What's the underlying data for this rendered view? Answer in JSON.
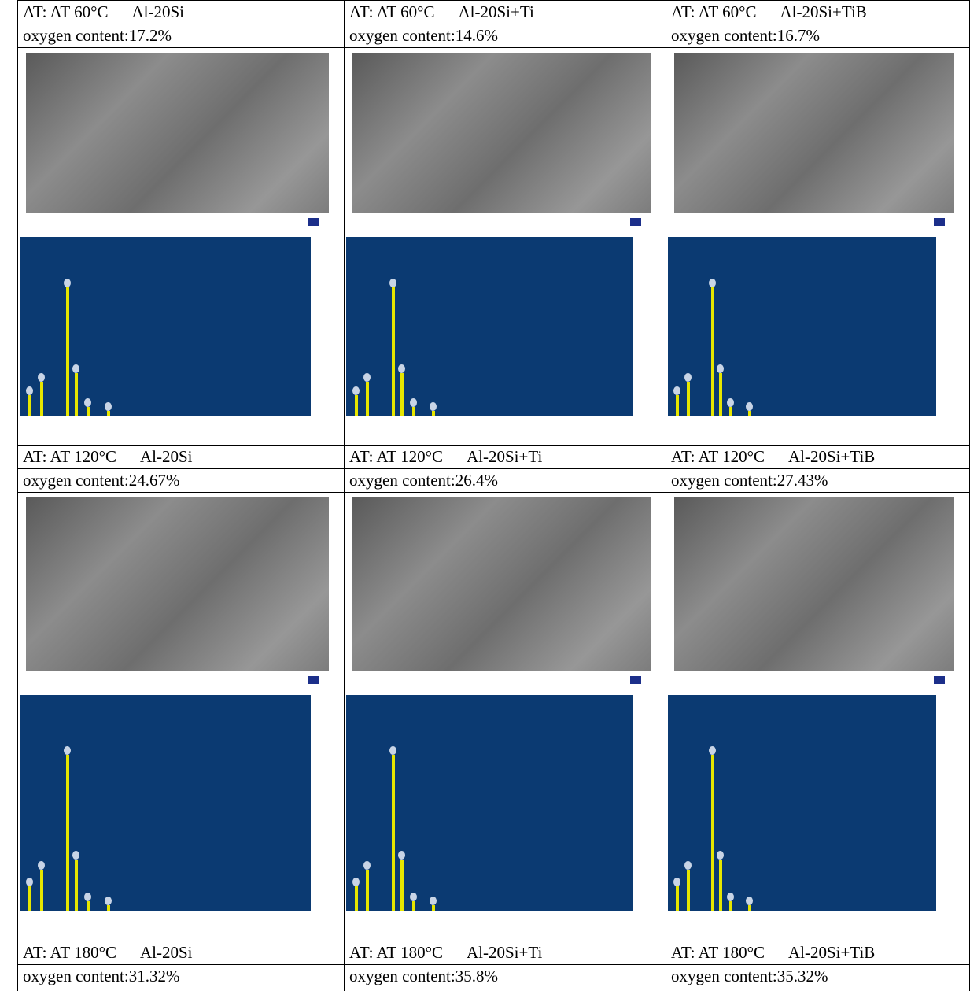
{
  "groups": [
    {
      "cells": [
        {
          "condition": "AT: AT 60°C",
          "alloy": "Al-20Si",
          "oxygen": "oxygen content:17.2%"
        },
        {
          "condition": "AT: AT 60°C",
          "alloy": "Al-20Si+Ti",
          "oxygen": "oxygen content:14.6%"
        },
        {
          "condition": "AT: AT 60°C",
          "alloy": "Al-20Si+TiB",
          "oxygen": "oxygen content:16.7%"
        }
      ]
    },
    {
      "cells": [
        {
          "condition": "AT: AT 120°C",
          "alloy": "Al-20Si",
          "oxygen": "oxygen content:24.67%"
        },
        {
          "condition": "AT: AT 120°C",
          "alloy": "Al-20Si+Ti",
          "oxygen": "oxygen content:26.4%"
        },
        {
          "condition": "AT: AT 120°C",
          "alloy": "Al-20Si+TiB",
          "oxygen": "oxygen content:27.43%"
        }
      ]
    },
    {
      "cells": [
        {
          "condition": "AT: AT 180°C",
          "alloy": "Al-20Si",
          "oxygen": "oxygen content:31.32%"
        },
        {
          "condition": "AT: AT 180°C",
          "alloy": "Al-20Si+Ti",
          "oxygen": "oxygen content:35.8%"
        },
        {
          "condition": "AT: AT 180°C",
          "alloy": "Al-20Si+TiB",
          "oxygen": "oxygen content:35.32%"
        }
      ]
    }
  ]
}
